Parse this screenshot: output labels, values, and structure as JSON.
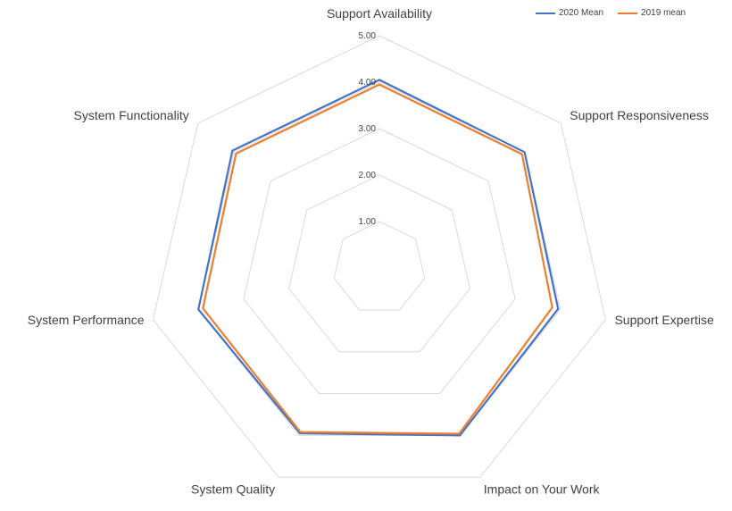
{
  "chart_data": {
    "type": "radar",
    "title": "",
    "categories": [
      "Support Availability",
      "Support Responsiveness",
      "Support Expertise",
      "Impact on Your Work",
      "System Quality",
      "System Performance",
      "System Functionality"
    ],
    "rlim": [
      0,
      5
    ],
    "ticks": [
      1,
      2,
      3,
      4,
      5
    ],
    "tick_labels": [
      "1.00",
      "2.00",
      "3.00",
      "4.00",
      "5.00"
    ],
    "grid": true,
    "legend": "top-right",
    "series": [
      {
        "name": "2020 Mean",
        "color": "#4472c4",
        "values": [
          4.05,
          4.0,
          3.95,
          4.0,
          3.95,
          4.0,
          4.05
        ]
      },
      {
        "name": "2019 mean",
        "color": "#ed7d31",
        "values": [
          3.95,
          3.93,
          3.82,
          3.96,
          3.92,
          3.9,
          3.95
        ]
      }
    ]
  }
}
